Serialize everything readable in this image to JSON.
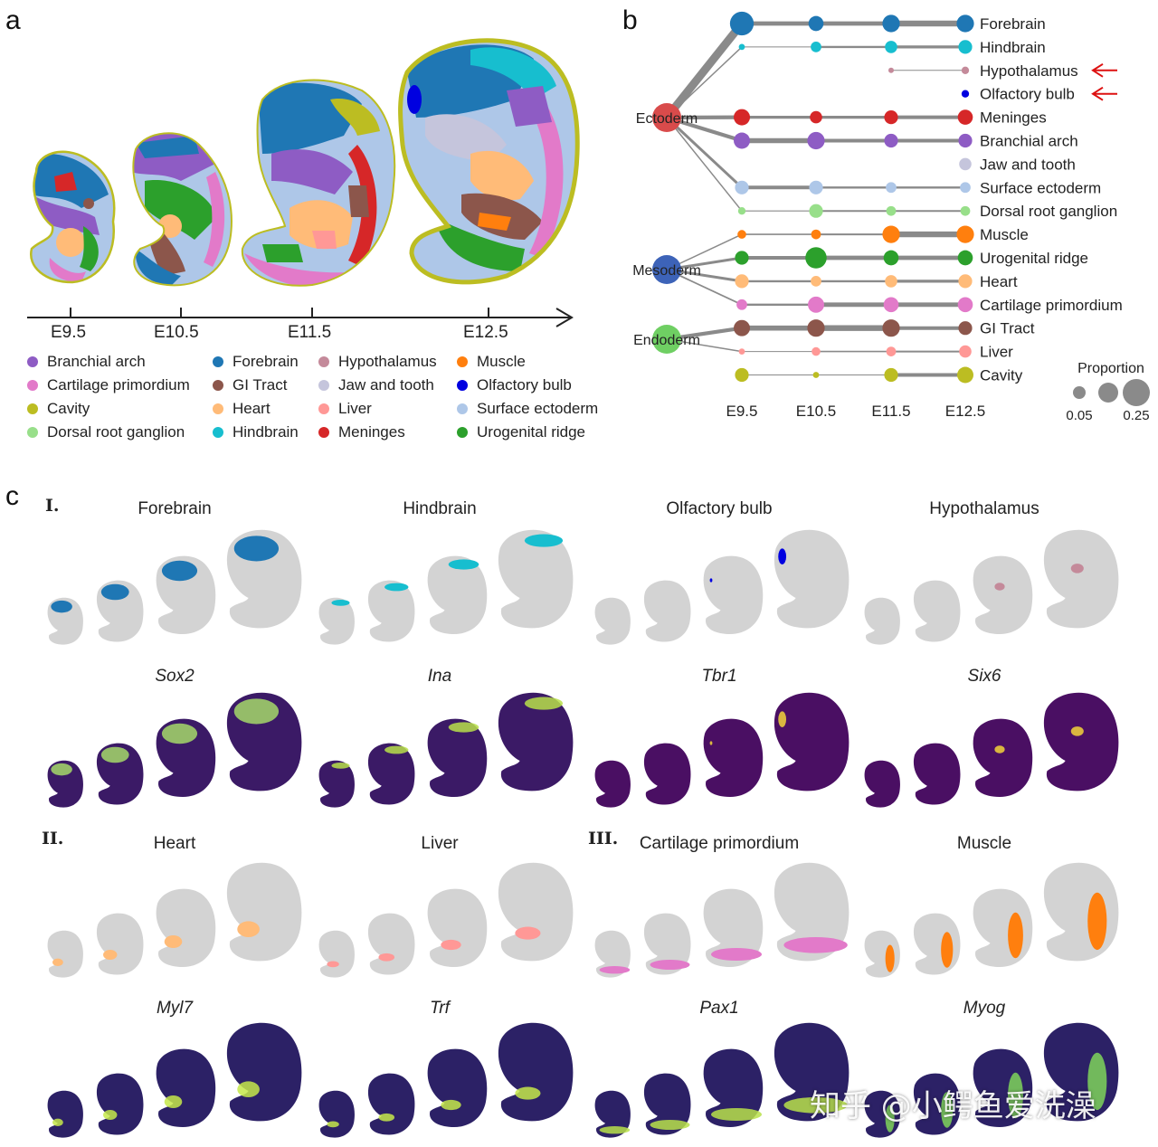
{
  "panels": {
    "a": "a",
    "b": "b",
    "c": "c"
  },
  "panel_a": {
    "stages": [
      "E9.5",
      "E10.5",
      "E11.5",
      "E12.5"
    ],
    "legend": [
      {
        "label": "Branchial arch",
        "color": "#8e5cc4"
      },
      {
        "label": "Cartilage primordium",
        "color": "#e27ac9"
      },
      {
        "label": "Cavity",
        "color": "#bcbd22"
      },
      {
        "label": "Dorsal root ganglion",
        "color": "#98df8a"
      },
      {
        "label": "Forebrain",
        "color": "#1f77b4"
      },
      {
        "label": "GI Tract",
        "color": "#8c564b"
      },
      {
        "label": "Heart",
        "color": "#ffbb78"
      },
      {
        "label": "Hindbrain",
        "color": "#17becf"
      },
      {
        "label": "Hypothalamus",
        "color": "#c48a9a"
      },
      {
        "label": "Jaw and tooth",
        "color": "#c5c5dc"
      },
      {
        "label": "Liver",
        "color": "#ff9896"
      },
      {
        "label": "Meninges",
        "color": "#d62728"
      },
      {
        "label": "Muscle",
        "color": "#ff7f0e"
      },
      {
        "label": "Olfactory bulb",
        "color": "#0000e0"
      },
      {
        "label": "Surface ectoderm",
        "color": "#aec7e8"
      },
      {
        "label": "Urogenital ridge",
        "color": "#2ca02c"
      }
    ]
  },
  "chart_data": {
    "type": "scatter",
    "x": [
      "E9.5",
      "E10.5",
      "E11.5",
      "E12.5"
    ],
    "germ_layers": [
      "Ectoderm",
      "Mesoderm",
      "Endoderm"
    ],
    "size_legend": {
      "title": "Proportion",
      "labels": [
        "0.05",
        "0.25"
      ]
    },
    "series": [
      {
        "name": "Forebrain",
        "color": "#1f77b4",
        "values": [
          0.3,
          0.12,
          0.16,
          0.16
        ]
      },
      {
        "name": "Hindbrain",
        "color": "#17becf",
        "values": [
          0.02,
          0.06,
          0.08,
          0.1
        ]
      },
      {
        "name": "Hypothalamus",
        "color": "#c48a9a",
        "values": [
          null,
          null,
          0.01,
          0.03
        ]
      },
      {
        "name": "Olfactory bulb",
        "color": "#0000e0",
        "values": [
          null,
          null,
          null,
          0.03
        ]
      },
      {
        "name": "Meninges",
        "color": "#d62728",
        "values": [
          0.14,
          0.08,
          0.1,
          0.12
        ]
      },
      {
        "name": "Branchial arch",
        "color": "#8e5cc4",
        "values": [
          0.14,
          0.16,
          0.1,
          0.1
        ]
      },
      {
        "name": "Jaw and tooth",
        "color": "#c5c5dc",
        "values": [
          null,
          null,
          null,
          0.08
        ]
      },
      {
        "name": "Surface ectoderm",
        "color": "#aec7e8",
        "values": [
          0.1,
          0.1,
          0.06,
          0.06
        ]
      },
      {
        "name": "Dorsal root ganglion",
        "color": "#98df8a",
        "values": [
          0.03,
          0.1,
          0.05,
          0.05
        ]
      },
      {
        "name": "Muscle",
        "color": "#ff7f0e",
        "values": [
          0.04,
          0.05,
          0.16,
          0.16
        ]
      },
      {
        "name": "Urogenital ridge",
        "color": "#2ca02c",
        "values": [
          0.1,
          0.24,
          0.12,
          0.12
        ]
      },
      {
        "name": "Heart",
        "color": "#ffbb78",
        "values": [
          0.1,
          0.06,
          0.08,
          0.1
        ]
      },
      {
        "name": "Cartilage primordium",
        "color": "#e27ac9",
        "values": [
          0.06,
          0.14,
          0.12,
          0.12
        ]
      },
      {
        "name": "GI Tract",
        "color": "#8c564b",
        "values": [
          0.14,
          0.16,
          0.16,
          0.1
        ]
      },
      {
        "name": "Liver",
        "color": "#ff9896",
        "values": [
          0.02,
          0.04,
          0.05,
          0.08
        ]
      },
      {
        "name": "Cavity",
        "color": "#bcbd22",
        "values": [
          0.1,
          0.02,
          0.1,
          0.14
        ]
      }
    ]
  },
  "panel_c": {
    "sections": [
      "I.",
      "II.",
      "III."
    ],
    "row1_titles": [
      "Forebrain",
      "Hindbrain",
      "Olfactory bulb",
      "Hypothalamus"
    ],
    "row2_genes": [
      "Sox2",
      "Ina",
      "Tbr1",
      "Six6"
    ],
    "row3_titles": [
      "Heart",
      "Liver",
      "Cartilage primordium",
      "Muscle"
    ],
    "row4_genes": [
      "Myl7",
      "Trf",
      "Pax1",
      "Myog"
    ],
    "highlight_colors": [
      "#1f77b4",
      "#17becf",
      "#0000e0",
      "#c48a9a",
      "#ffbb78",
      "#ff9896",
      "#e27ac9",
      "#ff7f0e"
    ]
  },
  "watermark": "知乎 @小鳄鱼爱洗澡"
}
